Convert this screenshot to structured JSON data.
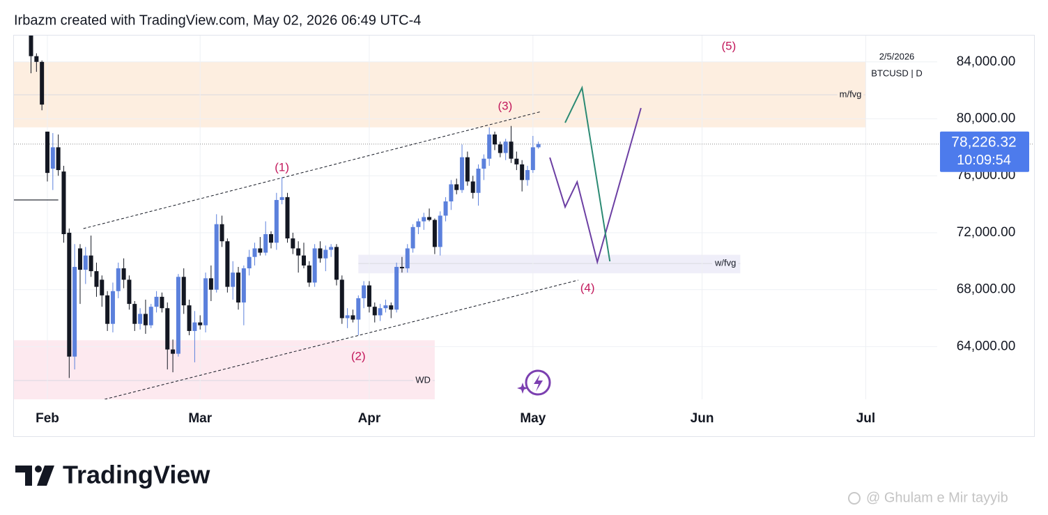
{
  "chart_data": {
    "type": "candlestick",
    "title": "Irbazm created with TradingView.com, May 02, 2026 06:49 UTC-4",
    "symbol": "BTCUSD | D",
    "date": "2/5/2026",
    "up_color": "#5b80dc",
    "down_color": "#131722",
    "grid": true,
    "xlim": [
      -6.13,
      163.1
    ],
    "ylim": [
      60300,
      85800
    ],
    "xticks": [
      {
        "value": 0,
        "label": "Feb"
      },
      {
        "value": 28,
        "label": "Mar"
      },
      {
        "value": 59,
        "label": "Apr"
      },
      {
        "value": 89,
        "label": "May"
      },
      {
        "value": 120,
        "label": "Jun"
      },
      {
        "value": 150,
        "label": "Jul"
      }
    ],
    "yticks": [
      {
        "value": 64000,
        "label": "64,000.00"
      },
      {
        "value": 68000,
        "label": "68,000.00"
      },
      {
        "value": 72000,
        "label": "72,000.00"
      },
      {
        "value": 76000,
        "label": "76,000.00"
      },
      {
        "value": 80000,
        "label": "80,000.00"
      },
      {
        "value": 84000,
        "label": "84,000.00"
      }
    ],
    "x": [
      -3,
      -2,
      -1,
      0,
      1,
      2,
      3,
      4,
      5,
      6,
      7,
      8,
      9,
      10,
      11,
      12,
      13,
      14,
      15,
      16,
      17,
      18,
      19,
      20,
      21,
      22,
      23,
      24,
      25,
      26,
      27,
      28,
      29,
      30,
      31,
      32,
      33,
      34,
      35,
      36,
      37,
      38,
      39,
      40,
      41,
      42,
      43,
      44,
      45,
      46,
      47,
      48,
      49,
      50,
      51,
      52,
      53,
      54,
      55,
      56,
      57,
      58,
      59,
      60,
      61,
      62,
      63,
      64,
      65,
      66,
      67,
      68,
      69,
      70,
      71,
      72,
      73,
      74,
      75,
      76,
      77,
      78,
      79,
      80,
      81,
      82,
      83,
      84,
      85,
      86,
      87,
      88,
      89,
      90
    ],
    "open": [
      86200,
      84400,
      84000,
      79100,
      76500,
      78000,
      76300,
      72000,
      63300,
      70900,
      69400,
      70400,
      69300,
      68700,
      67600,
      65600,
      67900,
      69500,
      68700,
      67000,
      65600,
      66300,
      65500,
      66800,
      67500,
      66700,
      63800,
      63500,
      68900,
      66900,
      65100,
      65700,
      65500,
      68800,
      68000,
      72600,
      71400,
      68200,
      69200,
      67100,
      69500,
      70300,
      70900,
      70600,
      71900,
      71300,
      74300,
      74500,
      71600,
      70900,
      70400,
      69700,
      68500,
      70900,
      70200,
      70800,
      71000,
      68700,
      66000,
      66200,
      65900,
      67400,
      68300,
      66800,
      66200,
      66700,
      66900,
      66600,
      69600,
      69500,
      70900,
      72400,
      72800,
      73100,
      72900,
      71000,
      73200,
      74200,
      75400,
      75000,
      77300,
      75600,
      74800,
      76500,
      77200,
      78900,
      78200,
      77600,
      78400,
      77200,
      76800,
      75700,
      76400,
      78000
    ],
    "high": [
      86800,
      84600,
      84100,
      79100,
      79000,
      78900,
      76700,
      72300,
      71200,
      71200,
      71000,
      71800,
      69900,
      69000,
      67900,
      68500,
      69900,
      70200,
      69000,
      67200,
      66700,
      67300,
      67000,
      67900,
      67800,
      67100,
      64500,
      69100,
      69500,
      67300,
      66500,
      66200,
      69200,
      69700,
      73300,
      73200,
      71600,
      70000,
      69600,
      69700,
      70800,
      71300,
      71700,
      72800,
      72100,
      74800,
      75900,
      74800,
      72000,
      71400,
      71300,
      70000,
      71200,
      71400,
      71100,
      71200,
      71200,
      69000,
      66700,
      66600,
      67600,
      68600,
      68600,
      67100,
      67000,
      67300,
      67100,
      69900,
      70300,
      71200,
      72600,
      73000,
      73400,
      73700,
      73000,
      73500,
      74500,
      75700,
      75800,
      78200,
      77700,
      76000,
      76800,
      77500,
      79400,
      79100,
      78400,
      78600,
      79500,
      77700,
      77100,
      76700,
      78800,
      78400
    ],
    "low": [
      83200,
      83300,
      80600,
      75600,
      75000,
      76000,
      71300,
      61800,
      62400,
      67000,
      68400,
      68900,
      67500,
      66800,
      65100,
      65000,
      67400,
      68100,
      66600,
      65100,
      65200,
      64900,
      65300,
      66400,
      66400,
      62400,
      62200,
      63300,
      66300,
      64800,
      62900,
      65200,
      65000,
      67200,
      67800,
      71000,
      67800,
      67300,
      66600,
      65500,
      69000,
      69700,
      70400,
      70400,
      70900,
      70800,
      74000,
      71300,
      70500,
      69200,
      69500,
      68200,
      68200,
      69900,
      69300,
      70300,
      68300,
      65600,
      65300,
      65700,
      64800,
      66700,
      66400,
      65700,
      65800,
      66400,
      66000,
      66400,
      69200,
      69200,
      70600,
      71900,
      72200,
      72800,
      70500,
      70400,
      72800,
      73600,
      74700,
      74800,
      75300,
      74400,
      73900,
      75700,
      76700,
      77800,
      77300,
      77100,
      76900,
      76400,
      74900,
      75300,
      76200,
      77900
    ],
    "close": [
      84400,
      84000,
      81000,
      76200,
      78000,
      76400,
      71900,
      63300,
      69600,
      69400,
      70400,
      69300,
      68200,
      67600,
      65600,
      67900,
      69500,
      68700,
      67000,
      65600,
      66300,
      65500,
      66800,
      67500,
      66700,
      63800,
      63500,
      68900,
      66900,
      65100,
      65700,
      65500,
      68800,
      68000,
      72600,
      71400,
      68200,
      69200,
      67100,
      69500,
      70300,
      70900,
      70600,
      71900,
      71300,
      74300,
      74500,
      71600,
      70900,
      70400,
      69700,
      68500,
      70900,
      70200,
      70800,
      71000,
      68700,
      66000,
      66200,
      65900,
      67400,
      68300,
      66800,
      66200,
      66700,
      66900,
      66600,
      69600,
      69500,
      70900,
      72400,
      72800,
      73100,
      72900,
      71000,
      73200,
      74200,
      75400,
      75000,
      77300,
      75600,
      74800,
      76500,
      77200,
      78900,
      78200,
      77600,
      78400,
      77200,
      76800,
      75700,
      76400,
      78000,
      78226.32
    ],
    "price_line": {
      "value": 78226.32,
      "label": "78,226.32",
      "countdown": "10:09:54",
      "color": "#4d7bec"
    },
    "zones": [
      {
        "label": "m/fvg",
        "x": [
          -6.13,
          150
        ],
        "y": [
          79400,
          84000
        ],
        "line": 81690,
        "color": "#fdeee0"
      },
      {
        "label": "w/fvg",
        "x": [
          57,
          127
        ],
        "y": [
          69150,
          70450
        ],
        "line": 69840,
        "color": "#efeef9"
      },
      {
        "label": "WD",
        "x": [
          -6.13,
          71
        ],
        "y": [
          60300,
          64450
        ],
        "line": 61620,
        "color": "#fde9ef"
      }
    ],
    "level": {
      "x": [
        -6.13,
        2
      ],
      "y": [
        74300,
        74300
      ]
    },
    "channel": [
      {
        "x": [
          6.6,
          90.5
        ],
        "y": [
          72290,
          80510
        ]
      },
      {
        "x": [
          10.5,
          97.3
        ],
        "y": [
          60300,
          68670
        ]
      }
    ],
    "projections": [
      {
        "color": "#6c3fa3",
        "x": [
          92.1,
          94.9,
          97.1,
          100.8,
          108.8
        ],
        "y": [
          77280,
          73810,
          75570,
          69940,
          80760
        ]
      },
      {
        "color": "#2b8a73",
        "x": [
          94.9,
          98.0,
          103.1
        ],
        "y": [
          79730,
          82180,
          69990
        ]
      }
    ],
    "waves": [
      {
        "label": "(1)",
        "x": 43.0,
        "y": 76550
      },
      {
        "label": "(2)",
        "x": 57.0,
        "y": 63280
      },
      {
        "label": "(3)",
        "x": 83.9,
        "y": 80860
      },
      {
        "label": "(4)",
        "x": 99.0,
        "y": 68080
      },
      {
        "label": "(5)",
        "x": 124.9,
        "y": 85070
      }
    ],
    "wave_color": "#c2185b"
  },
  "footer": {
    "brand": "TradingView",
    "watermark": "@ Ghulam e Mir tayyib"
  }
}
